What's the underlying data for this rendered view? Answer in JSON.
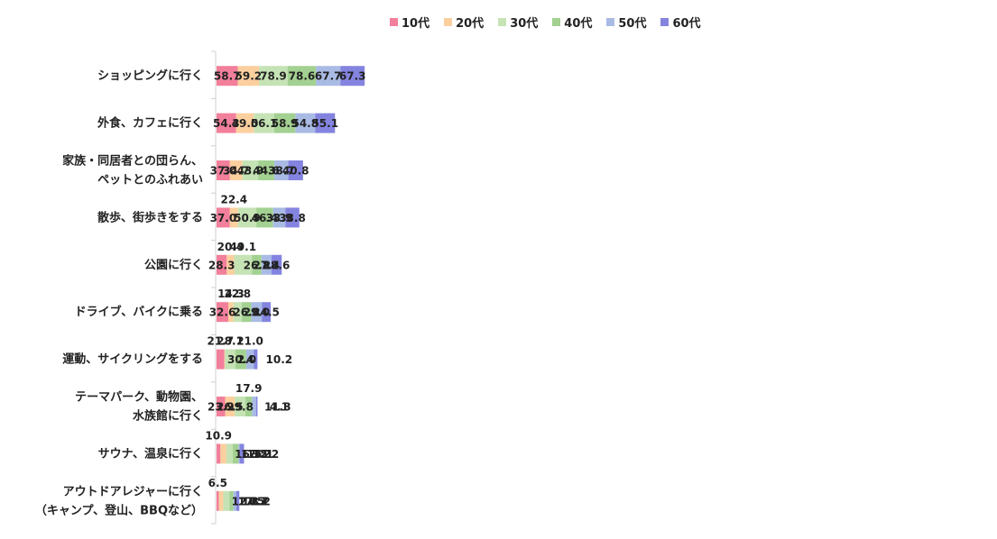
{
  "chart_data": {
    "type": "bar",
    "orientation": "horizontal",
    "stacked": true,
    "legend_position": "top",
    "grid": false,
    "categories": [
      [
        "ショッピングに行く"
      ],
      [
        "外食、カフェに行く"
      ],
      [
        "家族・同居者との団らん、",
        "ペットとのふれあい"
      ],
      [
        "散歩、街歩きをする"
      ],
      [
        "公園に行く"
      ],
      [
        "ドライブ、バイクに乗る"
      ],
      [
        "運動、サイクリングをする"
      ],
      [
        "テーマパーク、動物園、",
        "水族館に行く"
      ],
      [
        "サウナ、温泉に行く"
      ],
      [
        "アウトドアレジャーに行く",
        "（キャンプ、登山、BBQなど）"
      ]
    ],
    "series": [
      {
        "name": "10代",
        "color": "#f27f9b",
        "values": [
          58.7,
          54.3,
          37.0,
          37.0,
          28.3,
          32.6,
          21.7,
          23.9,
          10.9,
          6.5
        ]
      },
      {
        "name": "20代",
        "color": "#fccf9f",
        "values": [
          59.2,
          49.0,
          34.7,
          22.4,
          20.4,
          14.3,
          2.0,
          26.5,
          16.3,
          12.2
        ]
      },
      {
        "name": "30代",
        "color": "#c5e3b5",
        "values": [
          78.9,
          56.1,
          43.9,
          50.9,
          49.1,
          22.8,
          28.1,
          29.8,
          17.5,
          17.5
        ]
      },
      {
        "name": "40代",
        "color": "#a3d191",
        "values": [
          78.6,
          58.9,
          44.6,
          46.4,
          26.8,
          26.8,
          30.4,
          17.9,
          16.1,
          10.7
        ]
      },
      {
        "name": "50代",
        "color": "#a9bbe4",
        "values": [
          67.7,
          54.8,
          38.7,
          33.9,
          27.4,
          29.0,
          21.0,
          11.3,
          3.2,
          8.1
        ]
      },
      {
        "name": "60代",
        "color": "#8484e0",
        "values": [
          67.3,
          55.1,
          40.8,
          38.8,
          28.6,
          24.5,
          10.2,
          4.1,
          12.2,
          8.2
        ]
      }
    ],
    "value_labels": [
      [
        "58.7",
        "59.2",
        "78.9",
        "78.6",
        "67.7",
        "67.3"
      ],
      [
        "54.3",
        "49.0",
        "56.1",
        "58.9",
        "54.8",
        "55.1"
      ],
      [
        "37.0",
        "34.7",
        "43.9",
        "44.6",
        "38.7",
        "40.8"
      ],
      [
        "37.0",
        "22.4",
        "50.9",
        "46.4",
        "33.9",
        "38.8"
      ],
      [
        "28.3",
        "20.4",
        "49.1",
        "26.8",
        "27.4",
        "28.6"
      ],
      [
        "32.6",
        "14.3",
        "22.8",
        "26.8",
        "29.0",
        "24.5"
      ],
      [
        "21.7",
        "2.0",
        "28.1",
        "30.4",
        "21.0",
        "10.2"
      ],
      [
        "23.9",
        "26.5",
        "29.8",
        "17.9",
        "11.3",
        "4.1"
      ],
      [
        "10.9",
        "16.3",
        "17.5",
        "16.1",
        "3.2",
        "12.2"
      ],
      [
        "6.5",
        "12.2",
        "17.5",
        "10.7",
        "8.1",
        "8.2"
      ]
    ]
  }
}
